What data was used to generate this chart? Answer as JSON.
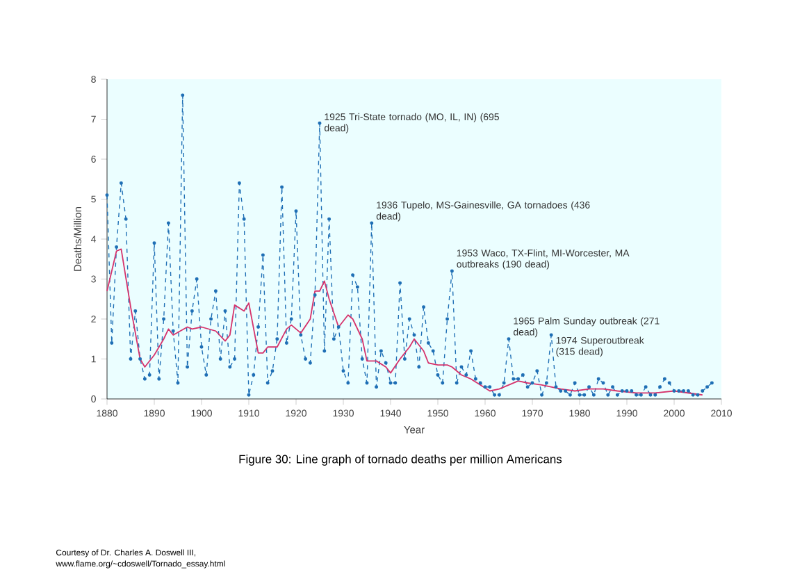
{
  "chart_data": {
    "type": "line",
    "title": "Figure 30: Line graph of tornado deaths per million Americans",
    "xlabel": "Year",
    "ylabel": "Deaths/Million",
    "xlim": [
      1880,
      2010
    ],
    "ylim": [
      0,
      8
    ],
    "xticks": [
      1880,
      1890,
      1900,
      1910,
      1920,
      1930,
      1940,
      1950,
      1960,
      1970,
      1980,
      1990,
      2000,
      2010
    ],
    "yticks": [
      0,
      1,
      2,
      3,
      4,
      5,
      6,
      7,
      8
    ],
    "grid": false,
    "x": [
      1880,
      1881,
      1882,
      1883,
      1884,
      1885,
      1886,
      1887,
      1888,
      1889,
      1890,
      1891,
      1892,
      1893,
      1894,
      1895,
      1896,
      1897,
      1898,
      1899,
      1900,
      1901,
      1902,
      1903,
      1904,
      1905,
      1906,
      1907,
      1908,
      1909,
      1910,
      1911,
      1912,
      1913,
      1914,
      1915,
      1916,
      1917,
      1918,
      1919,
      1920,
      1921,
      1922,
      1923,
      1924,
      1925,
      1926,
      1927,
      1928,
      1929,
      1930,
      1931,
      1932,
      1933,
      1934,
      1935,
      1936,
      1937,
      1938,
      1939,
      1940,
      1941,
      1942,
      1943,
      1944,
      1945,
      1946,
      1947,
      1948,
      1949,
      1950,
      1951,
      1952,
      1953,
      1954,
      1955,
      1956,
      1957,
      1958,
      1959,
      1960,
      1961,
      1962,
      1963,
      1964,
      1965,
      1966,
      1967,
      1968,
      1969,
      1970,
      1971,
      1972,
      1973,
      1974,
      1975,
      1976,
      1977,
      1978,
      1979,
      1980,
      1981,
      1982,
      1983,
      1984,
      1985,
      1986,
      1987,
      1988,
      1989,
      1990,
      1991,
      1992,
      1993,
      1994,
      1995,
      1996,
      1997,
      1998,
      1999,
      2000,
      2001,
      2002,
      2003,
      2004,
      2005,
      2006,
      2007,
      2008
    ],
    "series": [
      {
        "color": "#1f6fb5",
        "line_style": "dashed",
        "marker": "circle",
        "values": [
          5.1,
          1.4,
          3.8,
          5.4,
          4.5,
          1.0,
          2.2,
          1.0,
          0.5,
          0.6,
          3.9,
          0.5,
          2.0,
          4.4,
          1.7,
          0.4,
          7.6,
          0.8,
          2.2,
          3.0,
          1.3,
          0.6,
          2.0,
          2.7,
          1.0,
          2.2,
          0.8,
          1.0,
          5.4,
          4.5,
          0.1,
          0.6,
          1.8,
          3.6,
          0.4,
          0.7,
          1.5,
          5.3,
          1.4,
          2.0,
          4.7,
          1.6,
          1.0,
          0.9,
          2.6,
          6.9,
          1.2,
          4.5,
          1.5,
          1.8,
          0.7,
          0.4,
          3.1,
          2.8,
          1.0,
          0.4,
          4.4,
          0.3,
          1.2,
          0.9,
          0.4,
          0.4,
          2.9,
          1.0,
          2.0,
          1.6,
          0.8,
          2.3,
          1.4,
          1.2,
          0.6,
          0.4,
          2.0,
          3.2,
          0.4,
          0.8,
          0.6,
          1.2,
          0.5,
          0.4,
          0.3,
          0.3,
          0.1,
          0.1,
          0.4,
          1.5,
          0.5,
          0.5,
          0.6,
          0.3,
          0.4,
          0.7,
          0.1,
          0.4,
          1.6,
          0.3,
          0.2,
          0.2,
          0.1,
          0.4,
          0.1,
          0.1,
          0.3,
          0.1,
          0.5,
          0.4,
          0.1,
          0.3,
          0.1,
          0.2,
          0.2,
          0.2,
          0.1,
          0.1,
          0.3,
          0.1,
          0.1,
          0.3,
          0.5,
          0.4,
          0.2,
          0.2,
          0.2,
          0.2,
          0.1,
          0.1,
          0.2,
          0.3,
          0.4
        ]
      },
      {
        "color": "#d6336c",
        "line_style": "solid",
        "marker": "none",
        "x": [
          1880,
          1882,
          1883,
          1885,
          1887,
          1888,
          1890,
          1892,
          1893,
          1894,
          1897,
          1898,
          1900,
          1903,
          1905,
          1906,
          1907,
          1909,
          1910,
          1912,
          1913,
          1914,
          1916,
          1918,
          1919,
          1921,
          1923,
          1924,
          1925,
          1926,
          1927,
          1929,
          1931,
          1932,
          1934,
          1935,
          1937,
          1939,
          1940,
          1942,
          1944,
          1945,
          1947,
          1948,
          1950,
          1952,
          1953,
          1955,
          1957,
          1959,
          1961,
          1963,
          1965,
          1967,
          1969,
          1972,
          1974,
          1976,
          1979,
          1982,
          1985,
          1988,
          1992,
          1996,
          2000,
          2003,
          2006
        ],
        "values": [
          2.7,
          3.7,
          3.75,
          2.3,
          1.0,
          0.8,
          1.1,
          1.5,
          1.75,
          1.6,
          1.8,
          1.75,
          1.8,
          1.7,
          1.45,
          1.6,
          2.35,
          2.2,
          2.4,
          1.15,
          1.15,
          1.3,
          1.3,
          1.75,
          1.85,
          1.65,
          2.0,
          2.7,
          2.7,
          2.95,
          2.5,
          1.8,
          2.1,
          2.0,
          1.5,
          0.95,
          0.95,
          0.8,
          0.65,
          1.0,
          1.3,
          1.5,
          1.2,
          0.9,
          0.85,
          0.85,
          0.8,
          0.6,
          0.5,
          0.35,
          0.2,
          0.25,
          0.35,
          0.45,
          0.4,
          0.35,
          0.3,
          0.25,
          0.2,
          0.25,
          0.25,
          0.2,
          0.15,
          0.15,
          0.2,
          0.15,
          0.1
        ]
      }
    ],
    "annotations": [
      {
        "text": "1925 Tri-State tornado (MO, IL, IN) (695 dead)",
        "x": 1925,
        "y": 6.9
      },
      {
        "text": "1936 Tupelo, MS-Gainesville, GA tornadoes (436 dead)",
        "x": 1936,
        "y": 4.4
      },
      {
        "text": "1953 Waco, TX-Flint, MI-Worcester, MA outbreaks (190 dead)",
        "x": 1953,
        "y": 3.2
      },
      {
        "text": "1965 Palm Sunday outbreak (271 dead)",
        "x": 1965,
        "y": 1.5
      },
      {
        "text": "1974 Superoutbreak (315 dead)",
        "x": 1974,
        "y": 1.6
      },
      "Courtesy of Dr. Charles A. Doswell III,",
      "www.flame.org/~cdoswell/Tornado_essay.html"
    ]
  }
}
